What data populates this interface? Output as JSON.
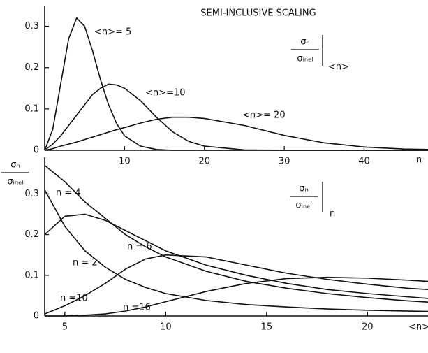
{
  "chart_data": [
    {
      "type": "line",
      "title": "SEMI-INCLUSIVE SCALING",
      "x_label": "n",
      "panel_label": {
        "numerator": "σₙ",
        "denominator": "σᵢₙₑₗ",
        "subscript": "<n>"
      },
      "x": [
        0,
        1,
        2,
        3,
        4,
        5,
        6,
        7,
        8,
        9,
        10,
        12,
        14,
        16,
        18,
        20,
        25,
        30,
        35,
        40,
        45,
        48
      ],
      "xlim": [
        0,
        48
      ],
      "xticks": [
        10,
        20,
        30,
        40
      ],
      "ylim": [
        0,
        0.35
      ],
      "yticks": [
        0,
        0.1,
        0.2,
        0.3
      ],
      "series": [
        {
          "name": "<n>= 5",
          "color": "#111111",
          "values": [
            0,
            0.05,
            0.16,
            0.27,
            0.32,
            0.3,
            0.24,
            0.17,
            0.11,
            0.065,
            0.035,
            0.01,
            0.002,
            0,
            0,
            0,
            0,
            0,
            0,
            0,
            0,
            0
          ]
        },
        {
          "name": "<n>=10",
          "color": "#111111",
          "values": [
            0,
            0.015,
            0.035,
            0.06,
            0.085,
            0.11,
            0.135,
            0.15,
            0.16,
            0.158,
            0.15,
            0.12,
            0.08,
            0.045,
            0.022,
            0.01,
            0.001,
            0,
            0,
            0,
            0,
            0
          ]
        },
        {
          "name": "<n>= 20",
          "color": "#111111",
          "values": [
            0,
            0.004,
            0.01,
            0.015,
            0.02,
            0.026,
            0.032,
            0.038,
            0.044,
            0.05,
            0.055,
            0.066,
            0.075,
            0.08,
            0.08,
            0.077,
            0.06,
            0.036,
            0.018,
            0.008,
            0.003,
            0.002
          ]
        }
      ]
    },
    {
      "type": "line",
      "x_label": "<n>",
      "y_label": {
        "numerator": "σₙ",
        "denominator": "σᵢₙₑₗ"
      },
      "panel_label": {
        "numerator": "σₙ",
        "denominator": "σᵢₙₑₗ",
        "subscript": "n"
      },
      "x": [
        4,
        5,
        6,
        7,
        8,
        9,
        10,
        12,
        14,
        16,
        18,
        20,
        22,
        23
      ],
      "xlim": [
        4,
        23
      ],
      "xticks": [
        5,
        10,
        15,
        20
      ],
      "ylim": [
        0,
        0.39
      ],
      "yticks": [
        0,
        0.1,
        0.2,
        0.3
      ],
      "series": [
        {
          "name": "n = 4",
          "color": "#111111",
          "values": [
            0.37,
            0.33,
            0.28,
            0.24,
            0.2,
            0.17,
            0.145,
            0.11,
            0.085,
            0.068,
            0.055,
            0.045,
            0.037,
            0.034
          ]
        },
        {
          "name": "n = 6",
          "color": "#111111",
          "values": [
            0.2,
            0.245,
            0.25,
            0.235,
            0.21,
            0.185,
            0.16,
            0.125,
            0.1,
            0.08,
            0.065,
            0.055,
            0.047,
            0.043
          ]
        },
        {
          "name": "n = 2",
          "color": "#111111",
          "values": [
            0.31,
            0.22,
            0.16,
            0.12,
            0.09,
            0.07,
            0.055,
            0.038,
            0.028,
            0.022,
            0.017,
            0.014,
            0.012,
            0.011
          ]
        },
        {
          "name": "n =10",
          "color": "#111111",
          "values": [
            0.005,
            0.025,
            0.05,
            0.08,
            0.115,
            0.14,
            0.15,
            0.145,
            0.125,
            0.105,
            0.09,
            0.078,
            0.068,
            0.065
          ]
        },
        {
          "name": "n =16",
          "color": "#111111",
          "values": [
            0,
            0,
            0.002,
            0.005,
            0.012,
            0.022,
            0.035,
            0.06,
            0.08,
            0.092,
            0.095,
            0.093,
            0.088,
            0.085
          ]
        }
      ]
    }
  ]
}
